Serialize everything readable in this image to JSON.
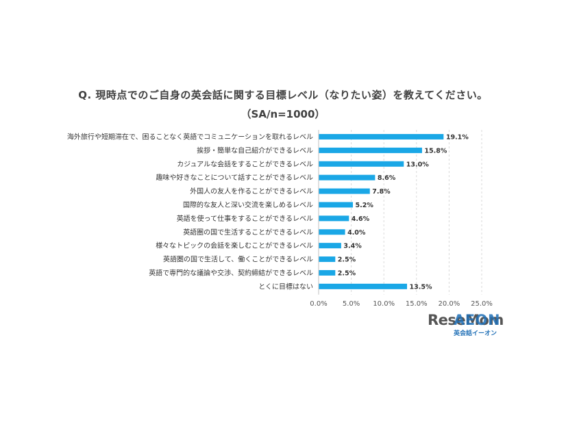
{
  "chart_data": {
    "type": "bar",
    "orientation": "horizontal",
    "title": "Q. 現時点でのご自身の英会話に関する目標レベル（なりたい姿）を教えてください。",
    "subtitle": "（SA/n=1000）",
    "categories": [
      "海外旅行や短期滞在で、困ることなく英語でコミュニケーションを取れるレベル",
      "挨拶・簡単な自己紹介ができるレベル",
      "カジュアルな会話をすることができるレベル",
      "趣味や好きなことについて話すことができるレベル",
      "外国人の友人を作ることができるレベル",
      "国際的な友人と深い交流を楽しめるレベル",
      "英語を使って仕事をすることができるレベル",
      "英語圏の国で生活することができるレベル",
      "様々なトピックの会話を楽しむことができるレベル",
      "英語圏の国で生活して、働くことができるレベル",
      "英語で専門的な議論や交渉、契約締結ができるレベル",
      "とくに目標はない"
    ],
    "values": [
      19.1,
      15.8,
      13.0,
      8.6,
      7.8,
      5.2,
      4.6,
      4.0,
      3.4,
      2.5,
      2.5,
      13.5
    ],
    "value_labels": [
      "19.1%",
      "15.8%",
      "13.0%",
      "8.6%",
      "7.8%",
      "5.2%",
      "4.6%",
      "4.0%",
      "3.4%",
      "2.5%",
      "2.5%",
      "13.5%"
    ],
    "xlim": [
      0,
      25
    ],
    "xticks": [
      "0.0%",
      "5.0%",
      "10.0%",
      "15.0%",
      "20.0%",
      "25.0%"
    ],
    "grid": true,
    "bar_color": "#1aa7e6"
  },
  "logo": {
    "watermark": "ReseMom",
    "brand": "AEON",
    "brand_sub": "英会話イーオン"
  }
}
